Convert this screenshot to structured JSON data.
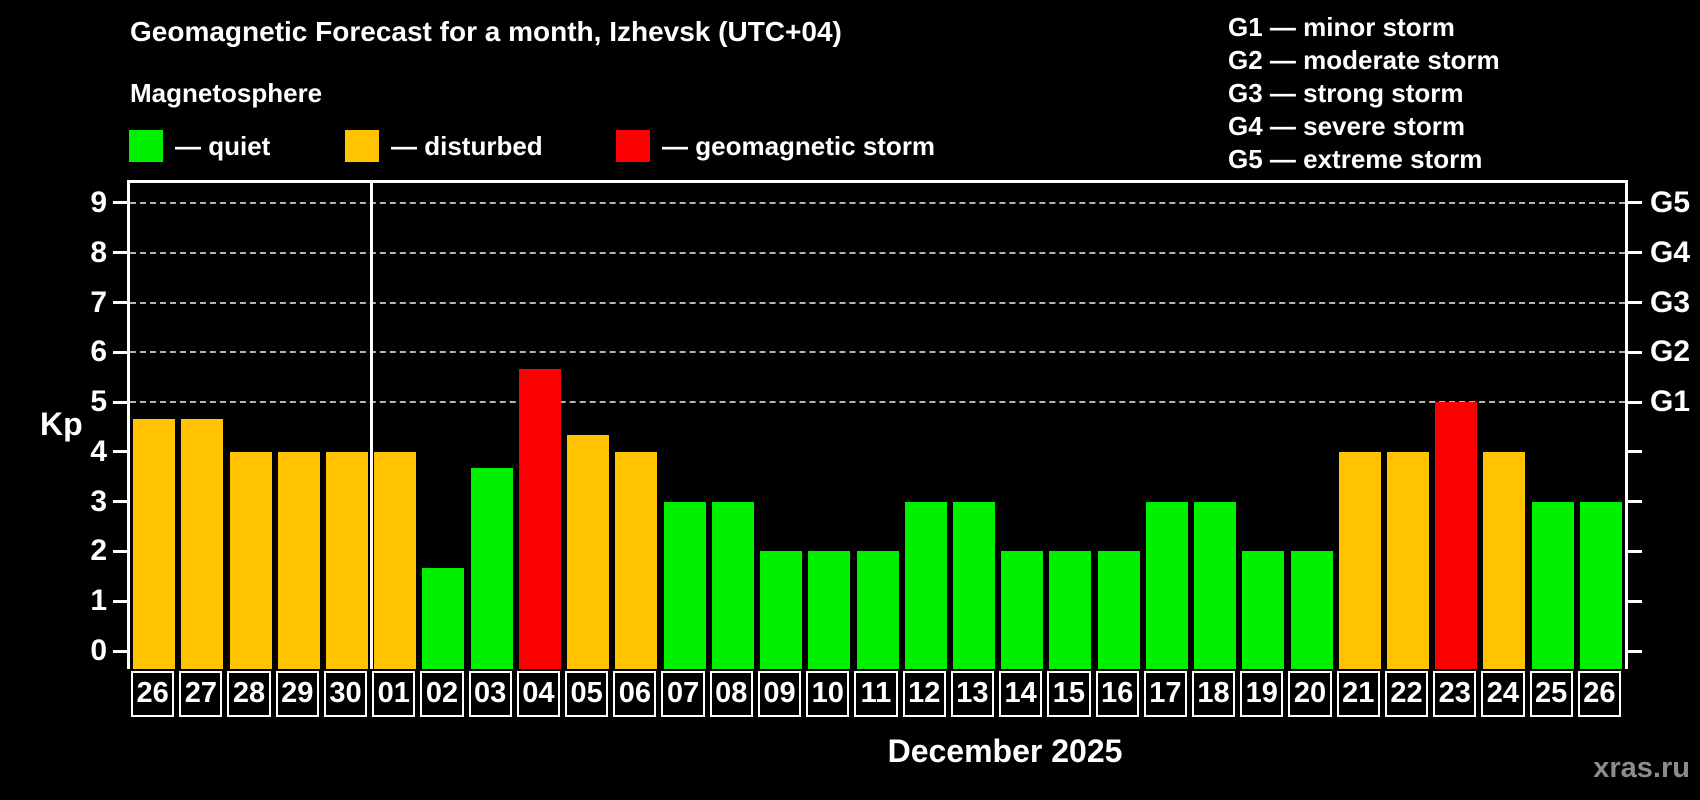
{
  "page": {
    "title": "Geomagnetic Forecast for a month, Izhevsk (UTC+04)",
    "subtitle": "Magnetosphere",
    "watermark": "xras.ru"
  },
  "legend": {
    "items": [
      {
        "key": "quiet",
        "label": "— quiet",
        "color": "#00f100"
      },
      {
        "key": "disturbed",
        "label": "— disturbed",
        "color": "#ffc300"
      },
      {
        "key": "storm",
        "label": "— geomagnetic storm",
        "color": "#fa0000"
      }
    ]
  },
  "storm_scale_legend": {
    "items": [
      {
        "label": "G1 — minor storm"
      },
      {
        "label": "G2 — moderate storm"
      },
      {
        "label": "G3 — strong storm"
      },
      {
        "label": "G4 — severe storm"
      },
      {
        "label": "G5 — extreme storm"
      }
    ]
  },
  "colors": {
    "background": "#000000",
    "axis": "#ffffff",
    "grid": "#b4b4b4",
    "watermark": "#8c8c8c",
    "quiet": "#00f100",
    "disturbed": "#ffc300",
    "storm": "#fa0000"
  },
  "chart_data": {
    "type": "bar",
    "title": "Geomagnetic Forecast for a month, Izhevsk (UTC+04)",
    "xlabel": "December 2025",
    "ylabel": "Kp",
    "ylim": [
      0,
      9
    ],
    "yticks": [
      0,
      1,
      2,
      3,
      4,
      5,
      6,
      7,
      8,
      9
    ],
    "gridlines_at_kp": [
      5,
      6,
      7,
      8,
      9
    ],
    "grid": "horizontal dashed at G-storm levels only",
    "legend_position": "top-left",
    "right_axis": [
      {
        "kp": 5,
        "label": "G1"
      },
      {
        "kp": 6,
        "label": "G2"
      },
      {
        "kp": 7,
        "label": "G3"
      },
      {
        "kp": 8,
        "label": "G4"
      },
      {
        "kp": 9,
        "label": "G5"
      }
    ],
    "month_separator_after_index": 4,
    "days": [
      "26",
      "27",
      "28",
      "29",
      "30",
      "01",
      "02",
      "03",
      "04",
      "05",
      "06",
      "07",
      "08",
      "09",
      "10",
      "11",
      "12",
      "13",
      "14",
      "15",
      "16",
      "17",
      "18",
      "19",
      "20",
      "21",
      "22",
      "23",
      "24",
      "25",
      "26"
    ],
    "kp_values": [
      4.67,
      4.67,
      4,
      4,
      4,
      4,
      1.67,
      3.67,
      5.67,
      4.33,
      4,
      3,
      3,
      2,
      2,
      2,
      3,
      3,
      2,
      2,
      2,
      3,
      3,
      2,
      2,
      4,
      4,
      5,
      4,
      3,
      3
    ],
    "status": [
      "disturbed",
      "disturbed",
      "disturbed",
      "disturbed",
      "disturbed",
      "disturbed",
      "quiet",
      "quiet",
      "storm",
      "disturbed",
      "disturbed",
      "quiet",
      "quiet",
      "quiet",
      "quiet",
      "quiet",
      "quiet",
      "quiet",
      "quiet",
      "quiet",
      "quiet",
      "quiet",
      "quiet",
      "quiet",
      "quiet",
      "disturbed",
      "disturbed",
      "storm",
      "disturbed",
      "quiet",
      "quiet"
    ]
  }
}
